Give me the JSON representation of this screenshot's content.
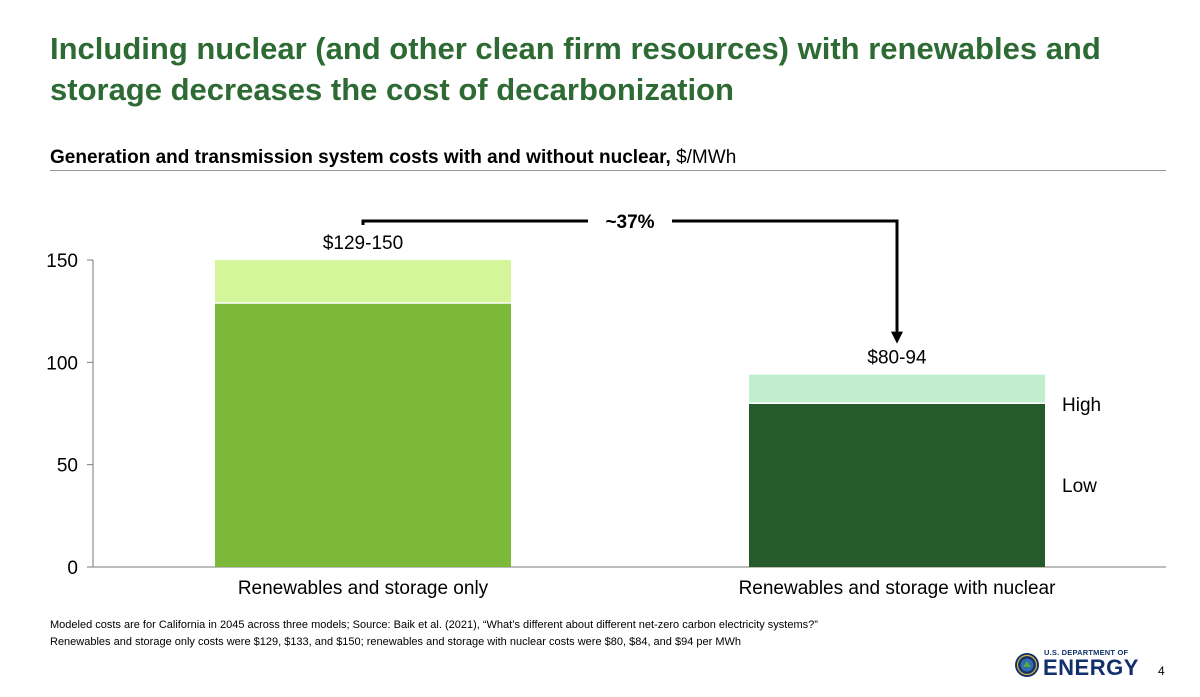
{
  "slide": {
    "title": "Including nuclear (and other clean firm resources) with renewables and storage decreases the cost of decarbonization",
    "subtitle_bold": "Generation and transmission system costs with and without nuclear,",
    "subtitle_unit": " $/MWh",
    "footnotes": [
      "Modeled costs are for California in 2045 across three models; Source: Baik et al. (2021), “What’s different about different net-zero carbon electricity systems?”",
      "Renewables and storage only costs were $129, $133, and $150; renewables and storage with nuclear costs were $80, $84, and $94 per MWh"
    ],
    "logo": {
      "small_text": "U.S. DEPARTMENT OF",
      "big_text": "ENERGY"
    },
    "page_number": "4"
  },
  "chart_data": {
    "type": "bar",
    "stacked": true,
    "categories": [
      "Renewables and storage only",
      "Renewables and storage with nuclear"
    ],
    "series": [
      {
        "name": "Low",
        "values": [
          129,
          80
        ],
        "colors": [
          "#7cb83a",
          "#255a2b"
        ]
      },
      {
        "name": "High",
        "values": [
          21,
          14
        ],
        "colors": [
          "#d5f59b",
          "#c1eecf"
        ]
      }
    ],
    "range_labels": [
      "$129-150",
      "$80-94"
    ],
    "annotation": "~37%",
    "yticks": [
      0,
      50,
      100,
      150
    ],
    "ylim": [
      0,
      150
    ],
    "legend": "right",
    "grid": false
  }
}
